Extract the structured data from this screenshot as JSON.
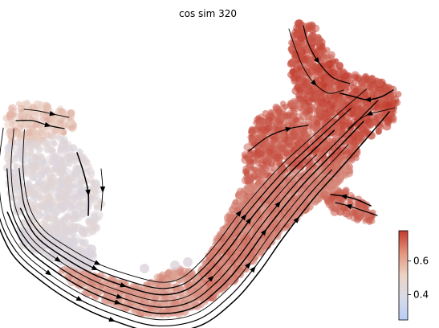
{
  "chart_data": {
    "type": "scatter",
    "title": "cos sim 320",
    "xlabel": "",
    "ylabel": "",
    "grid": false,
    "axes_visible": false,
    "overlay": "velocity streamlines with arrowheads",
    "colormap": {
      "name": "coolwarm",
      "low_color": "#c9d6f5",
      "mid_color": "#ead5c8",
      "high_color": "#c0392b",
      "range": [
        0.25,
        0.78
      ],
      "ticks": [
        0.4,
        0.6
      ],
      "tick_labels": [
        "0.4",
        "0.6"
      ]
    },
    "series": [
      {
        "values_by_region": [
          {
            "region": "upper-right cluster",
            "value": 0.74
          },
          {
            "region": "upper-right arm",
            "value": 0.72
          },
          {
            "region": "right branch",
            "value": 0.71
          },
          {
            "region": "main diagonal trunk",
            "value": 0.66
          },
          {
            "region": "lower curve",
            "value": 0.62
          },
          {
            "region": "left hook top",
            "value": 0.55
          },
          {
            "region": "left descending limb",
            "value": 0.42
          },
          {
            "region": "left lower arc",
            "value": 0.4
          }
        ]
      }
    ]
  }
}
